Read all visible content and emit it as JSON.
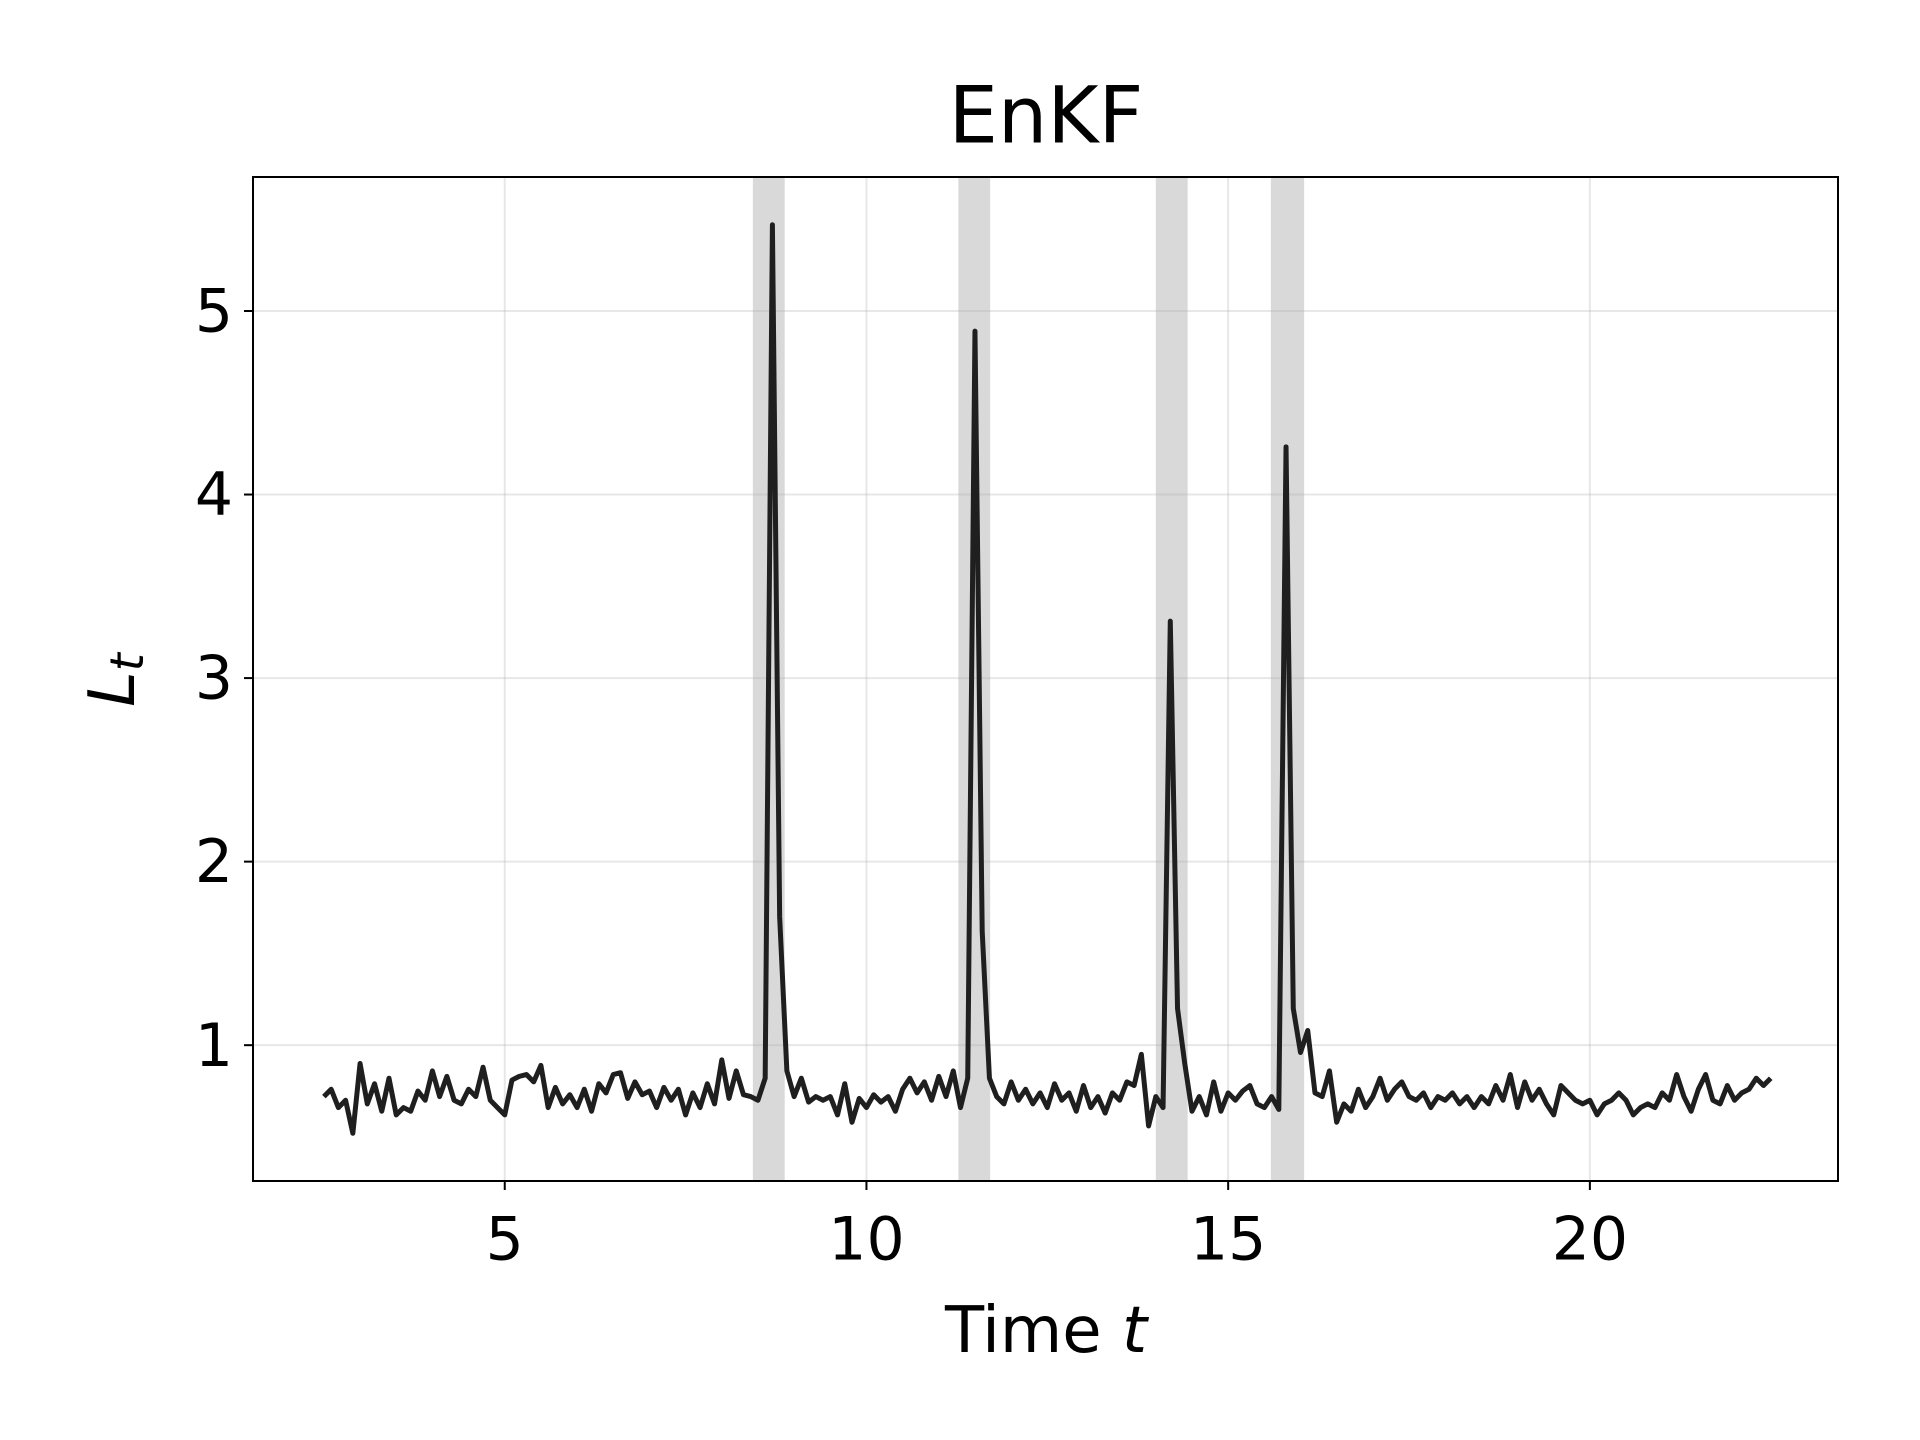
{
  "chart_data": {
    "type": "line",
    "title": "EnKF",
    "xlabel": [
      "Time",
      "t"
    ],
    "ylabel": [
      "L",
      "t"
    ],
    "xlim": [
      1.52,
      23.43
    ],
    "ylim": [
      0.26,
      5.73
    ],
    "xticks": [
      5,
      10,
      15,
      20
    ],
    "yticks": [
      1,
      2,
      3,
      4,
      5
    ],
    "grid": true,
    "spans": [
      [
        8.43,
        8.87
      ],
      [
        11.27,
        11.71
      ],
      [
        14.0,
        14.44
      ],
      [
        15.59,
        16.05
      ]
    ],
    "span_color": "#d9d9d9",
    "x": [
      2.5,
      2.6,
      2.7,
      2.8,
      2.9,
      3.0,
      3.1,
      3.2,
      3.3,
      3.4,
      3.5,
      3.6,
      3.7,
      3.8,
      3.9,
      4.0,
      4.1,
      4.2,
      4.3,
      4.4,
      4.5,
      4.6,
      4.7,
      4.8,
      4.9,
      5.0,
      5.1,
      5.2,
      5.3,
      5.4,
      5.5,
      5.6,
      5.7,
      5.8,
      5.9,
      6.0,
      6.1,
      6.2,
      6.3,
      6.4,
      6.5,
      6.6,
      6.7,
      6.8,
      6.9,
      7.0,
      7.1,
      7.2,
      7.3,
      7.4,
      7.5,
      7.6,
      7.7,
      7.8,
      7.9,
      8.0,
      8.1,
      8.2,
      8.3,
      8.4,
      8.5,
      8.6,
      8.7,
      8.8,
      8.9,
      9.0,
      9.1,
      9.2,
      9.3,
      9.4,
      9.5,
      9.6,
      9.7,
      9.8,
      9.9,
      10.0,
      10.1,
      10.2,
      10.3,
      10.4,
      10.5,
      10.6,
      10.7,
      10.8,
      10.9,
      11.0,
      11.1,
      11.2,
      11.3,
      11.4,
      11.5,
      11.6,
      11.7,
      11.8,
      11.9,
      12.0,
      12.1,
      12.2,
      12.3,
      12.4,
      12.5,
      12.6,
      12.7,
      12.8,
      12.9,
      13.0,
      13.1,
      13.2,
      13.3,
      13.4,
      13.5,
      13.6,
      13.7,
      13.8,
      13.9,
      14.0,
      14.1,
      14.2,
      14.3,
      14.4,
      14.5,
      14.6,
      14.7,
      14.8,
      14.9,
      15.0,
      15.1,
      15.2,
      15.3,
      15.4,
      15.5,
      15.6,
      15.7,
      15.8,
      15.9,
      16.0,
      16.1,
      16.2,
      16.3,
      16.4,
      16.5,
      16.6,
      16.7,
      16.8,
      16.9,
      17.0,
      17.1,
      17.2,
      17.3,
      17.4,
      17.5,
      17.6,
      17.7,
      17.8,
      17.9,
      18.0,
      18.1,
      18.2,
      18.3,
      18.4,
      18.5,
      18.6,
      18.7,
      18.8,
      18.9,
      19.0,
      19.1,
      19.2,
      19.3,
      19.4,
      19.5,
      19.6,
      19.7,
      19.8,
      19.9,
      20.0,
      20.1,
      20.2,
      20.3,
      20.4,
      20.5,
      20.6,
      20.7,
      20.8,
      20.9,
      21.0,
      21.1,
      21.2,
      21.3,
      21.4,
      21.5,
      21.6,
      21.7,
      21.8,
      21.9,
      22.0,
      22.1,
      22.2,
      22.3,
      22.4,
      22.5
    ],
    "series": [
      {
        "color": "#1f1f1f",
        "values": [
          0.72,
          0.76,
          0.66,
          0.7,
          0.52,
          0.9,
          0.68,
          0.79,
          0.64,
          0.82,
          0.62,
          0.66,
          0.64,
          0.75,
          0.7,
          0.86,
          0.72,
          0.83,
          0.7,
          0.68,
          0.76,
          0.72,
          0.88,
          0.7,
          0.66,
          0.62,
          0.81,
          0.83,
          0.84,
          0.8,
          0.89,
          0.66,
          0.77,
          0.68,
          0.73,
          0.66,
          0.76,
          0.64,
          0.79,
          0.74,
          0.84,
          0.85,
          0.71,
          0.8,
          0.73,
          0.75,
          0.66,
          0.77,
          0.7,
          0.76,
          0.62,
          0.74,
          0.66,
          0.79,
          0.68,
          0.92,
          0.71,
          0.86,
          0.73,
          0.72,
          0.7,
          0.82,
          5.47,
          1.7,
          0.86,
          0.72,
          0.82,
          0.69,
          0.72,
          0.7,
          0.72,
          0.62,
          0.79,
          0.58,
          0.71,
          0.66,
          0.73,
          0.69,
          0.72,
          0.64,
          0.76,
          0.82,
          0.74,
          0.8,
          0.7,
          0.83,
          0.72,
          0.86,
          0.66,
          0.82,
          4.89,
          1.62,
          0.82,
          0.72,
          0.68,
          0.8,
          0.7,
          0.76,
          0.68,
          0.74,
          0.66,
          0.79,
          0.7,
          0.74,
          0.64,
          0.78,
          0.66,
          0.72,
          0.63,
          0.74,
          0.7,
          0.8,
          0.78,
          0.95,
          0.56,
          0.72,
          0.66,
          3.31,
          1.2,
          0.9,
          0.64,
          0.72,
          0.62,
          0.8,
          0.64,
          0.74,
          0.7,
          0.75,
          0.78,
          0.68,
          0.66,
          0.72,
          0.65,
          4.26,
          1.2,
          0.96,
          1.08,
          0.74,
          0.72,
          0.86,
          0.58,
          0.68,
          0.64,
          0.76,
          0.66,
          0.72,
          0.82,
          0.7,
          0.76,
          0.8,
          0.72,
          0.7,
          0.74,
          0.66,
          0.72,
          0.7,
          0.74,
          0.68,
          0.72,
          0.66,
          0.72,
          0.68,
          0.78,
          0.7,
          0.84,
          0.66,
          0.8,
          0.7,
          0.76,
          0.68,
          0.62,
          0.78,
          0.74,
          0.7,
          0.68,
          0.7,
          0.62,
          0.68,
          0.7,
          0.74,
          0.7,
          0.62,
          0.66,
          0.68,
          0.66,
          0.74,
          0.7,
          0.84,
          0.72,
          0.64,
          0.76,
          0.84,
          0.7,
          0.68,
          0.78,
          0.7,
          0.74,
          0.76,
          0.82,
          0.78,
          0.82
        ]
      }
    ]
  }
}
